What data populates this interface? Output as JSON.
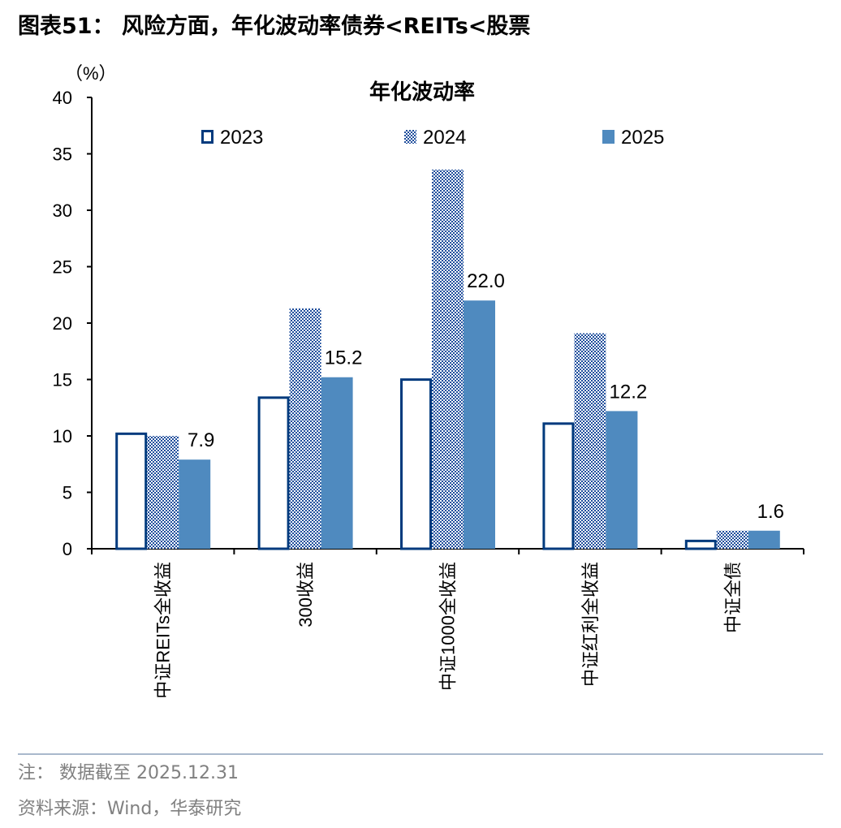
{
  "figure_title": "图表51：  风险方面，年化波动率债券<REITs<股票",
  "note": "注：  数据截至 2025.12.31",
  "source": "资料来源：Wind，华泰研究",
  "colors": {
    "s2023_border": "#003a7d",
    "s2024_dots": "#1f4e9c",
    "s2025": "#4f8abf",
    "axis": "#000000",
    "rule": "#a9b8cc"
  },
  "chart_data": {
    "type": "bar",
    "title": "年化波动率",
    "ylabel": "（%）",
    "xlabel": "",
    "ylim": [
      0,
      40
    ],
    "yticks": [
      0,
      5,
      10,
      15,
      20,
      25,
      30,
      35,
      40
    ],
    "grid": false,
    "legend_placement": "top",
    "categories": [
      "中证REITs全收益",
      "300收益",
      "中证1000全收益",
      "中证红利全收益",
      "中证全债"
    ],
    "series": [
      {
        "name": "2023",
        "values": [
          10.3,
          13.5,
          15.1,
          11.2,
          0.8
        ]
      },
      {
        "name": "2024",
        "values": [
          10.0,
          21.3,
          33.6,
          19.1,
          1.6
        ]
      },
      {
        "name": "2025",
        "values": [
          7.9,
          15.2,
          22.0,
          12.2,
          1.6
        ],
        "data_labels": [
          "7.9",
          "15.2",
          "22.0",
          "12.2",
          "1.6"
        ]
      }
    ]
  }
}
